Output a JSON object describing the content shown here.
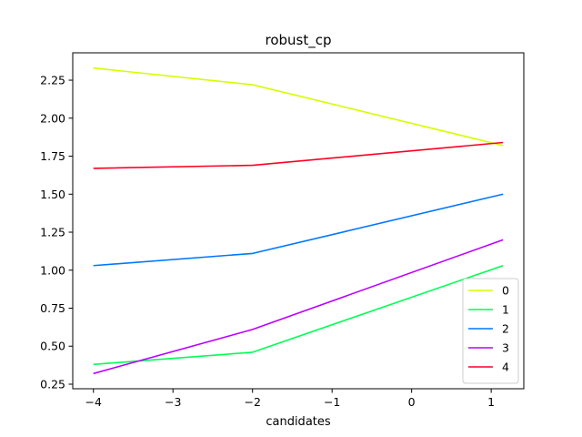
{
  "chart_data": {
    "type": "line",
    "title": "robust_cp",
    "xlabel": "candidates",
    "ylabel": "",
    "x": [
      -4,
      -2,
      1.15
    ],
    "xlim": [
      -4.26,
      1.41
    ],
    "ylim": [
      0.22,
      2.43
    ],
    "xticks": [
      -4,
      -3,
      -2,
      -1,
      0,
      1
    ],
    "xtick_labels": [
      "−4",
      "−3",
      "−2",
      "−1",
      "0",
      "1"
    ],
    "yticks": [
      0.25,
      0.5,
      0.75,
      1.0,
      1.25,
      1.5,
      1.75,
      2.0,
      2.25
    ],
    "ytick_labels": [
      "0.25",
      "0.50",
      "0.75",
      "1.00",
      "1.25",
      "1.50",
      "1.75",
      "2.00",
      "2.25"
    ],
    "grid": false,
    "legend_position": "bottom-right",
    "series": [
      {
        "name": "0",
        "color": "#d4ff00",
        "values": [
          2.33,
          2.22,
          1.82
        ]
      },
      {
        "name": "1",
        "color": "#00ff55",
        "values": [
          0.38,
          0.46,
          1.03
        ]
      },
      {
        "name": "2",
        "color": "#0077ff",
        "values": [
          1.03,
          1.11,
          1.5
        ]
      },
      {
        "name": "3",
        "color": "#bb00ff",
        "values": [
          0.32,
          0.61,
          1.2
        ]
      },
      {
        "name": "4",
        "color": "#ff0022",
        "values": [
          1.67,
          1.69,
          1.84
        ]
      }
    ]
  }
}
